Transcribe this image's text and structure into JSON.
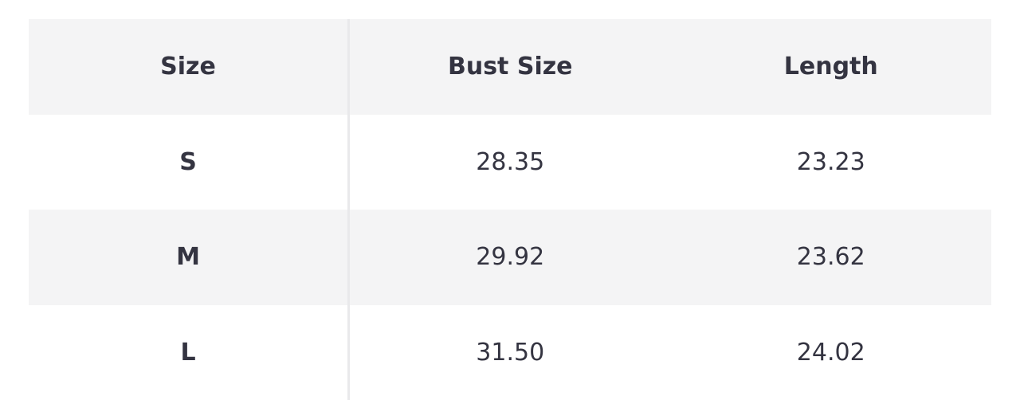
{
  "table": {
    "headers": [
      "Size",
      "Bust Size",
      "Length"
    ],
    "rows": [
      [
        "S",
        "28.35",
        "23.23"
      ],
      [
        "M",
        "29.92",
        "23.62"
      ],
      [
        "L",
        "31.50",
        "24.02"
      ]
    ]
  },
  "colors": {
    "text": "#343441",
    "stripe": "#f4f4f5",
    "divider": "#e9e9eb"
  }
}
